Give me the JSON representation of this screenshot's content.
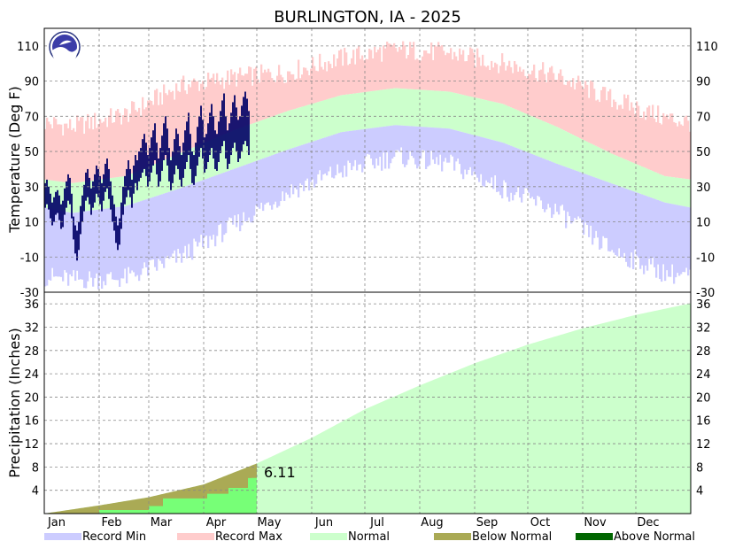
{
  "chart_data": [
    {
      "type": "area",
      "title": "BURLINGTON, IA - 2025",
      "ylabel": "Temperature (Deg F)",
      "ylim": [
        -30,
        120
      ],
      "yticks": [
        -30,
        -10,
        10,
        30,
        50,
        70,
        90,
        110
      ],
      "grid": true,
      "months": [
        "Jan",
        "Feb",
        "Mar",
        "Apr",
        "May",
        "Jun",
        "Jul",
        "Aug",
        "Sep",
        "Oct",
        "Nov",
        "Dec"
      ],
      "normal_high_by_month": [
        32,
        36,
        49,
        62,
        73,
        82,
        86,
        84,
        77,
        64,
        49,
        36
      ],
      "normal_low_by_month": [
        15,
        19,
        29,
        40,
        51,
        61,
        65,
        63,
        55,
        43,
        32,
        21
      ],
      "record_max_by_month": [
        64,
        71,
        87,
        92,
        95,
        103,
        108,
        106,
        100,
        93,
        80,
        69
      ],
      "record_min_by_month": [
        -23,
        -22,
        -10,
        8,
        27,
        39,
        47,
        43,
        29,
        16,
        -6,
        -19
      ],
      "observed_high_daily": [
        32,
        34,
        30,
        26,
        21,
        24,
        27,
        28,
        25,
        20,
        22,
        29,
        33,
        37,
        35,
        26,
        13,
        8,
        5,
        10,
        19,
        25,
        31,
        38,
        40,
        35,
        29,
        33,
        37,
        42,
        40,
        36,
        32,
        37,
        43,
        46,
        40,
        33,
        25,
        20,
        13,
        8,
        12,
        21,
        30,
        36,
        40,
        45,
        40,
        34,
        42,
        48,
        45,
        50,
        52,
        57,
        60,
        55,
        48,
        52,
        58,
        62,
        66,
        55,
        46,
        52,
        59,
        66,
        70,
        63,
        52,
        45,
        50,
        57,
        63,
        60,
        53,
        48,
        55,
        62,
        67,
        72,
        60,
        50,
        48,
        55,
        64,
        70,
        76,
        68,
        58,
        60,
        66,
        72,
        77,
        70,
        62,
        60,
        67,
        73,
        79,
        83,
        70,
        62,
        66,
        72,
        78,
        82,
        75,
        68,
        70,
        76,
        81,
        84,
        80,
        73
      ],
      "observed_low_daily": [
        18,
        20,
        17,
        12,
        8,
        10,
        14,
        15,
        11,
        6,
        7,
        14,
        18,
        22,
        20,
        12,
        0,
        -8,
        -12,
        -6,
        3,
        10,
        16,
        22,
        24,
        20,
        14,
        18,
        21,
        26,
        24,
        20,
        16,
        22,
        27,
        29,
        23,
        17,
        10,
        5,
        -2,
        -6,
        -3,
        6,
        14,
        20,
        24,
        28,
        24,
        18,
        26,
        32,
        28,
        33,
        35,
        38,
        40,
        36,
        30,
        33,
        38,
        42,
        45,
        37,
        30,
        33,
        39,
        45,
        48,
        42,
        33,
        28,
        32,
        37,
        42,
        40,
        34,
        30,
        35,
        40,
        44,
        48,
        40,
        32,
        31,
        36,
        42,
        47,
        52,
        46,
        38,
        40,
        44,
        48,
        52,
        46,
        40,
        39,
        44,
        49,
        53,
        56,
        46,
        40,
        43,
        48,
        52,
        55,
        50,
        44,
        46,
        50,
        54,
        56,
        53,
        48
      ]
    },
    {
      "type": "area",
      "ylabel": "Precipitation (Inches)",
      "ylim": [
        0,
        38
      ],
      "yticks": [
        4,
        8,
        12,
        16,
        20,
        24,
        28,
        32,
        36
      ],
      "grid": true,
      "months": [
        "Jan",
        "Feb",
        "Mar",
        "Apr",
        "May",
        "Jun",
        "Jul",
        "Aug",
        "Sep",
        "Oct",
        "Nov",
        "Dec"
      ],
      "normal_cumulative_end_of_month": [
        1.4,
        2.8,
        5.0,
        8.6,
        13.0,
        17.9,
        22.0,
        25.8,
        29.0,
        31.8,
        34.1,
        36.1
      ],
      "observed_cumulative_daily": [
        0.0,
        0.0,
        0.0,
        0.0,
        0.0,
        0.0,
        0.0,
        0.0,
        0.0,
        0.0,
        0.0,
        0.0,
        0.0,
        0.0,
        0.0,
        0.0,
        0.0,
        0.0,
        0.0,
        0.0,
        0.0,
        0.0,
        0.0,
        0.0,
        0.0,
        0.0,
        0.0,
        0.0,
        0.0,
        0.0,
        0.0,
        0.6,
        0.6,
        0.6,
        0.6,
        0.6,
        0.6,
        0.6,
        0.6,
        0.6,
        0.6,
        0.6,
        0.6,
        0.6,
        0.6,
        0.6,
        0.6,
        0.6,
        0.6,
        0.6,
        0.6,
        0.6,
        0.6,
        0.6,
        0.6,
        0.6,
        0.6,
        0.6,
        0.6,
        1.3,
        1.3,
        1.3,
        1.3,
        1.3,
        1.3,
        1.3,
        1.3,
        2.6,
        2.6,
        2.6,
        2.6,
        2.6,
        2.6,
        2.6,
        2.6,
        2.6,
        2.6,
        2.6,
        2.6,
        2.6,
        2.6,
        2.6,
        2.6,
        2.6,
        2.6,
        2.6,
        2.6,
        2.6,
        2.6,
        2.6,
        2.6,
        2.6,
        3.4,
        3.4,
        3.4,
        3.4,
        3.4,
        3.4,
        3.4,
        3.4,
        3.4,
        3.4,
        3.4,
        3.4,
        4.4,
        4.4,
        4.4,
        4.4,
        4.4,
        4.4,
        4.4,
        4.4,
        4.4,
        4.4,
        4.4,
        6.1,
        6.1,
        6.11,
        6.11,
        6.11
      ],
      "annotation": "6.11",
      "legend": [
        "Record Min",
        "Record Max",
        "Normal",
        "Below Normal",
        "Above Normal"
      ],
      "colors": {
        "record_min": "#ccccff",
        "record_max": "#ffcccc",
        "normal": "#ccffcc",
        "below_normal": "#aaaa55",
        "above_normal": "#006600",
        "observed_precip": "#77ff77",
        "observed_temp": "#000066"
      }
    }
  ]
}
